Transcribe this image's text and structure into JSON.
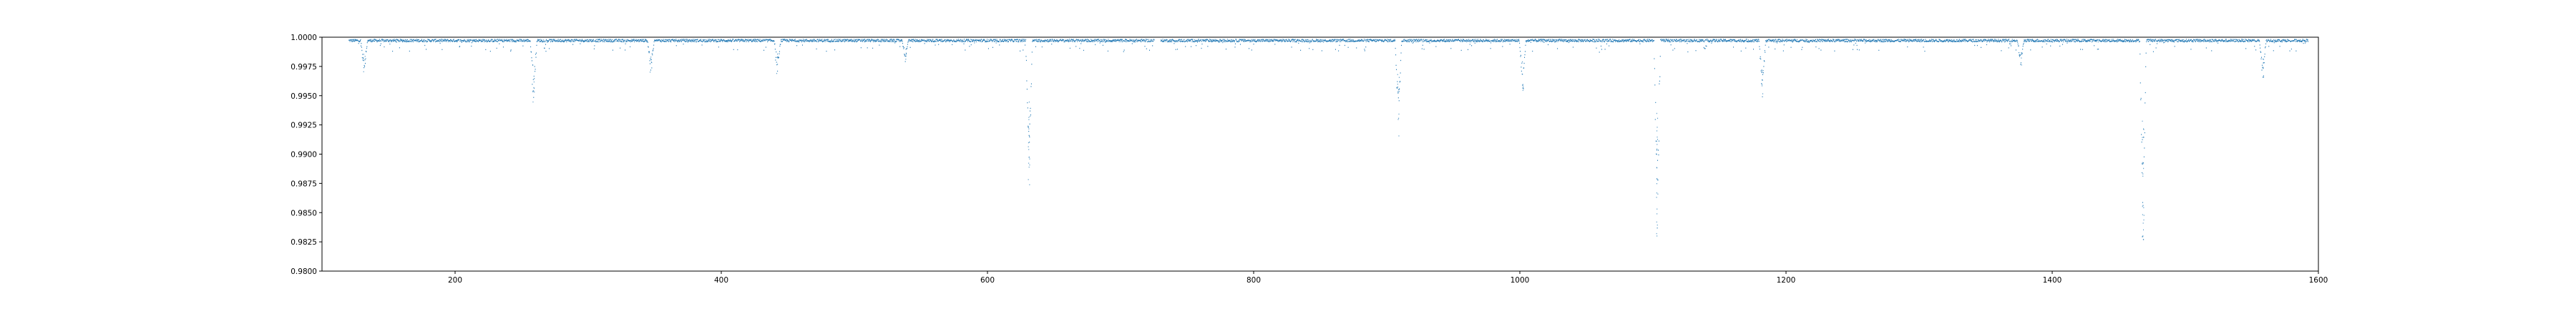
{
  "chart_data": {
    "type": "scatter",
    "title": "",
    "xlabel": "",
    "ylabel": "",
    "xlim": [
      100,
      1600
    ],
    "ylim": [
      0.98,
      1.0
    ],
    "x_ticks": [
      200,
      400,
      600,
      800,
      1000,
      1200,
      1400,
      1600
    ],
    "y_ticks": [
      0.98,
      0.9825,
      0.985,
      0.9875,
      0.99,
      0.9925,
      0.995,
      0.9975,
      1.0
    ],
    "x_tick_labels": [
      "200",
      "400",
      "600",
      "800",
      "1000",
      "1200",
      "1400",
      "1600"
    ],
    "y_tick_labels": [
      "0.9800",
      "0.9825",
      "0.9850",
      "0.9875",
      "0.9900",
      "0.9925",
      "0.9950",
      "0.9975",
      "1.0000"
    ],
    "grid": false,
    "series": [
      {
        "color": "#1f77b4",
        "marker": "dot",
        "baseline": 0.99975,
        "coverage": [
          [
            120,
            725
          ],
          [
            730,
            1592
          ]
        ],
        "dips": [
          {
            "x": 131.5,
            "depth": 0.0027
          },
          {
            "x": 258.7,
            "depth": 0.0054
          },
          {
            "x": 346.8,
            "depth": 0.0027
          },
          {
            "x": 442.0,
            "depth": 0.0029
          },
          {
            "x": 538.0,
            "depth": 0.0018
          },
          {
            "x": 631.0,
            "depth": 0.0135
          },
          {
            "x": 908.5,
            "depth": 0.0082
          },
          {
            "x": 1001.8,
            "depth": 0.0045
          },
          {
            "x": 1103.0,
            "depth": 0.0168
          },
          {
            "x": 1182.0,
            "depth": 0.0052
          },
          {
            "x": 1376.0,
            "depth": 0.0022
          },
          {
            "x": 1468.0,
            "depth": 0.0172
          },
          {
            "x": 1558.0,
            "depth": 0.0038
          }
        ]
      }
    ]
  }
}
